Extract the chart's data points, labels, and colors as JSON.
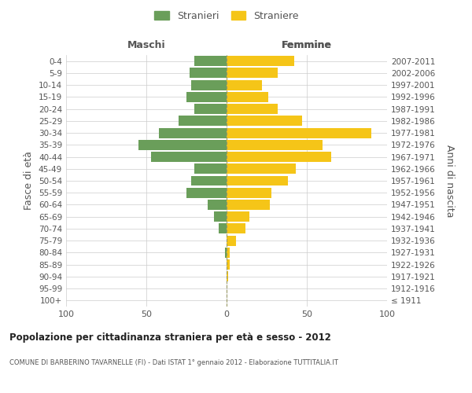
{
  "age_groups": [
    "100+",
    "95-99",
    "90-94",
    "85-89",
    "80-84",
    "75-79",
    "70-74",
    "65-69",
    "60-64",
    "55-59",
    "50-54",
    "45-49",
    "40-44",
    "35-39",
    "30-34",
    "25-29",
    "20-24",
    "15-19",
    "10-14",
    "5-9",
    "0-4"
  ],
  "birth_years": [
    "≤ 1911",
    "1912-1916",
    "1917-1921",
    "1922-1926",
    "1927-1931",
    "1932-1936",
    "1937-1941",
    "1942-1946",
    "1947-1951",
    "1952-1956",
    "1957-1961",
    "1962-1966",
    "1967-1971",
    "1972-1976",
    "1977-1981",
    "1982-1986",
    "1987-1991",
    "1992-1996",
    "1997-2001",
    "2002-2006",
    "2007-2011"
  ],
  "males": [
    0,
    0,
    0,
    0,
    1,
    0,
    5,
    8,
    12,
    25,
    22,
    20,
    47,
    55,
    42,
    30,
    20,
    25,
    22,
    23,
    20
  ],
  "females": [
    0,
    0,
    1,
    2,
    2,
    6,
    12,
    14,
    27,
    28,
    38,
    43,
    65,
    60,
    90,
    47,
    32,
    26,
    22,
    32,
    42
  ],
  "male_color": "#6a9e5a",
  "female_color": "#f5c518",
  "bar_height": 0.85,
  "xlim": [
    -100,
    100
  ],
  "xticks": [
    -100,
    -50,
    0,
    50,
    100
  ],
  "xticklabels": [
    "100",
    "50",
    "0",
    "50",
    "100"
  ],
  "title": "Popolazione per cittadinanza straniera per età e sesso - 2012",
  "subtitle": "COMUNE DI BARBERINO TAVARNELLE (FI) - Dati ISTAT 1° gennaio 2012 - Elaborazione TUTTITALIA.IT",
  "ylabel_left": "Fasce di età",
  "ylabel_right": "Anni di nascita",
  "legend_male": "Stranieri",
  "legend_female": "Straniere",
  "maschi_label": "Maschi",
  "femmine_label": "Femmine",
  "background_color": "#ffffff",
  "grid_color": "#cccccc",
  "text_color": "#555555"
}
